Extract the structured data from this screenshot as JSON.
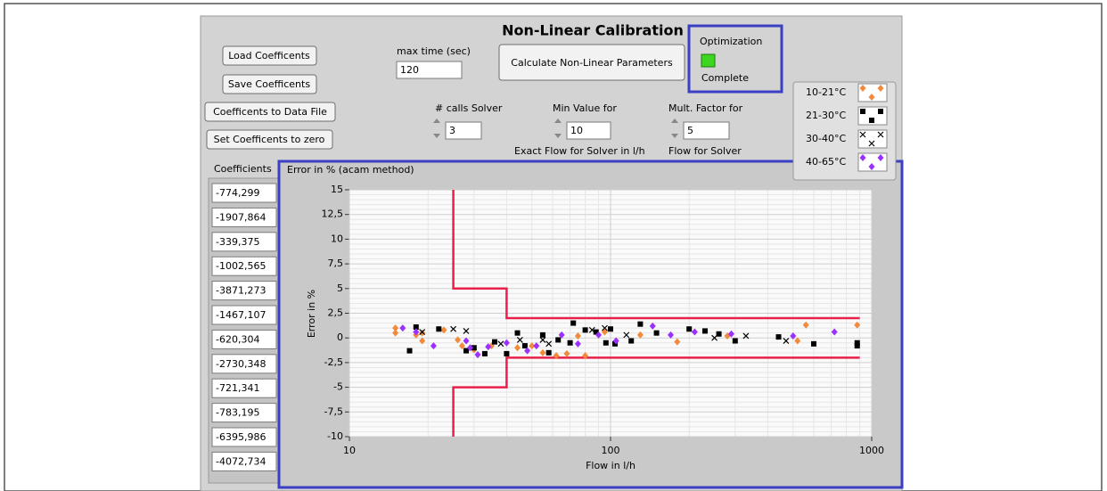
{
  "title": "Non-Linear Calibration",
  "buttons": [
    "Load Coefficents",
    "Save Coefficents",
    "Coefficents to Data File",
    "Set Coefficents to zero",
    "Calculate Non-Linear Parameters"
  ],
  "max_time": {
    "label": "max time (sec)",
    "value": "120"
  },
  "calls_solver": {
    "label": "# calls Solver",
    "value": "3"
  },
  "min_value": {
    "label": "Min Value for",
    "value": "10",
    "caption": "Exact Flow for Solver in l/h"
  },
  "mult_factor": {
    "label": "Mult. Factor for",
    "value": "5",
    "caption": "Flow for Solver"
  },
  "status": {
    "label": "Optimization",
    "state": "Complete"
  },
  "coefficients": {
    "label": "Coefficients",
    "values": [
      "-774,299",
      "-1907,864",
      "-339,375",
      "-1002,565",
      "-3871,273",
      "-1467,107",
      "-620,304",
      "-2730,348",
      "-721,341",
      "-783,195",
      "-6395,986",
      "-4072,734"
    ]
  },
  "chart_data": {
    "type": "scatter",
    "title": "Error in % (acam method)",
    "x_label": "Flow in l/h",
    "y_label": "Error in %",
    "xscale": "log",
    "xlim": [
      10,
      1000
    ],
    "xticks": [
      10,
      100,
      1000
    ],
    "ylim": [
      -10,
      15
    ],
    "yticks": [
      -10,
      {
        "value": -7.5,
        "label": "-7,5"
      },
      -5,
      {
        "value": -2.5,
        "label": "-2,5"
      },
      0,
      {
        "value": 2.5,
        "label": "2,5"
      },
      5,
      {
        "value": 7.5,
        "label": "7,5"
      },
      10,
      {
        "value": 12.5,
        "label": "12,5"
      },
      15
    ],
    "grid": true,
    "series": [
      {
        "name": "10-21°C",
        "color": "#f28a3c",
        "marker": "diamond",
        "x": [
          15,
          15,
          18,
          19,
          19,
          23,
          26,
          27,
          30,
          35,
          44,
          50,
          55,
          62,
          68,
          75,
          80,
          95,
          130,
          180,
          280,
          520,
          560,
          880
        ],
        "y": [
          1.0,
          0.5,
          0.3,
          -0.3,
          0.5,
          0.8,
          -0.2,
          -0.8,
          -1.2,
          -0.8,
          -1.0,
          -0.8,
          -1.5,
          -1.8,
          -1.6,
          0.2,
          -1.8,
          0.6,
          0.3,
          -0.4,
          0.2,
          -0.3,
          1.3,
          1.3
        ]
      },
      {
        "name": "21-30°C",
        "color": "#000000",
        "marker": "square",
        "x": [
          17,
          18,
          22,
          28,
          30,
          33,
          36,
          40,
          44,
          47,
          55,
          58,
          63,
          70,
          72,
          80,
          88,
          96,
          100,
          104,
          120,
          130,
          150,
          200,
          230,
          260,
          300,
          440,
          600,
          880,
          880
        ],
        "y": [
          -1.3,
          1.1,
          0.9,
          -1.3,
          -1.0,
          -1.6,
          -0.4,
          -1.6,
          0.5,
          -0.8,
          0.3,
          -1.5,
          -0.2,
          -0.5,
          1.5,
          0.8,
          0.6,
          -0.5,
          0.9,
          -0.6,
          -0.3,
          1.4,
          0.5,
          0.9,
          0.7,
          0.4,
          -0.3,
          0.1,
          -0.6,
          -0.5,
          -0.8
        ]
      },
      {
        "name": "30-40°C",
        "color": "#000000",
        "marker": "x",
        "x": [
          19,
          25,
          28,
          38,
          45,
          55,
          58,
          85,
          95,
          115,
          250,
          330,
          470
        ],
        "y": [
          0.6,
          0.9,
          0.7,
          -0.6,
          -0.2,
          -0.2,
          -0.6,
          0.8,
          1.0,
          0.3,
          0.0,
          0.2,
          -0.3
        ]
      },
      {
        "name": "40-65°C",
        "color": "#9b30ff",
        "marker": "diamond",
        "x": [
          16,
          18,
          21,
          28,
          29,
          31,
          34,
          40,
          48,
          52,
          65,
          75,
          90,
          105,
          145,
          170,
          210,
          290,
          500,
          720
        ],
        "y": [
          1.0,
          0.6,
          -0.8,
          -0.3,
          -1.0,
          -1.7,
          -0.9,
          -0.5,
          -1.3,
          -0.8,
          0.3,
          -0.6,
          0.3,
          -0.3,
          1.2,
          0.3,
          0.6,
          0.4,
          0.2,
          0.6
        ]
      }
    ],
    "limit_lines": [
      {
        "color": "#e8204a",
        "x": [
          25,
          25,
          40,
          40,
          900
        ],
        "y": [
          15,
          5,
          5,
          2,
          2
        ]
      },
      {
        "color": "#e8204a",
        "x": [
          25,
          25,
          40,
          40,
          900
        ],
        "y": [
          -10,
          -5,
          -5,
          -2,
          -2
        ]
      }
    ]
  }
}
